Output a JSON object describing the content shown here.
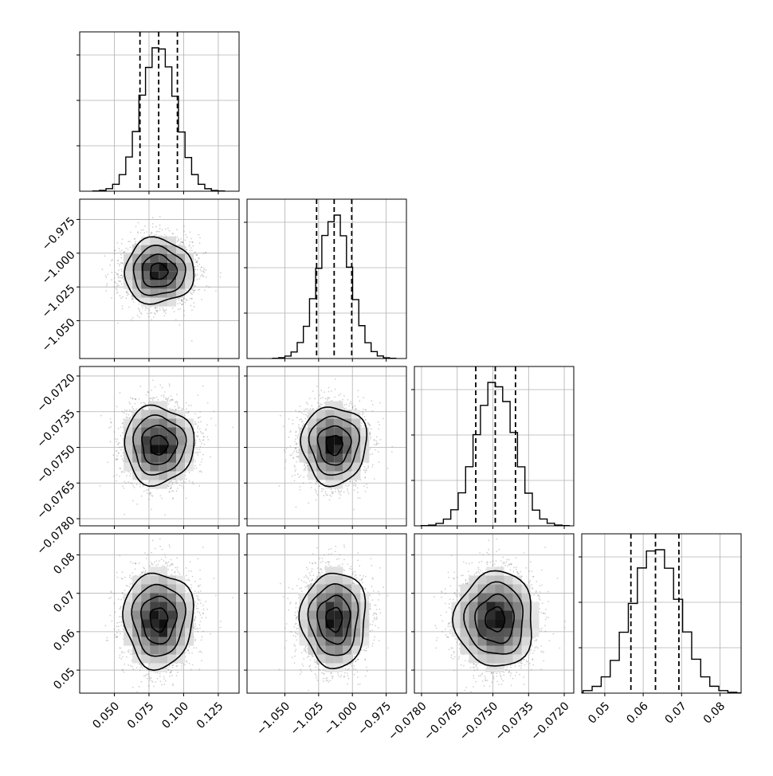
{
  "chart_data": {
    "type": "corner",
    "params": [
      {
        "range": [
          0.025,
          0.14
        ],
        "ticks": [
          0.05,
          0.075,
          0.1,
          0.125
        ],
        "tick_labels": [
          "0.050",
          "0.075",
          "0.100",
          "0.125"
        ],
        "mean": 0.082,
        "sigma": 0.0125,
        "quantiles": [
          0.0685,
          0.082,
          0.0955
        ]
      },
      {
        "range": [
          -1.078,
          -0.96
        ],
        "ticks": [
          -1.05,
          -1.025,
          -1.0,
          -0.975
        ],
        "tick_labels": [
          "−1.050",
          "−1.025",
          "−1.000",
          "−0.975"
        ],
        "mean": -1.0135,
        "sigma": 0.012,
        "quantiles": [
          -1.0265,
          -1.0135,
          -1.0005
        ]
      },
      {
        "range": [
          -0.0783,
          -0.0716
        ],
        "ticks": [
          -0.078,
          -0.0765,
          -0.075,
          -0.0735,
          -0.072
        ],
        "tick_labels": [
          "−0.0780",
          "−0.0765",
          "−0.0750",
          "−0.0735",
          "−0.0720"
        ],
        "mean": -0.0749,
        "sigma": 0.00082,
        "quantiles": [
          -0.07572,
          -0.0749,
          -0.07405
        ]
      },
      {
        "range": [
          0.044,
          0.0855
        ],
        "ticks": [
          0.05,
          0.06,
          0.07,
          0.08
        ],
        "tick_labels": [
          "0.05",
          "0.06",
          "0.07",
          "0.08"
        ],
        "mean": 0.0632,
        "sigma": 0.0062,
        "quantiles": [
          0.0568,
          0.0632,
          0.0693
        ]
      }
    ],
    "contour_sigmas": [
      0.5,
      1.0,
      1.5,
      2.0
    ],
    "samples_per_panel": 3000,
    "hist_bins": 20,
    "grid": true,
    "colors": {
      "line": "#000000",
      "grid": "#b0b0b0",
      "points": "#7a7a7a"
    }
  }
}
